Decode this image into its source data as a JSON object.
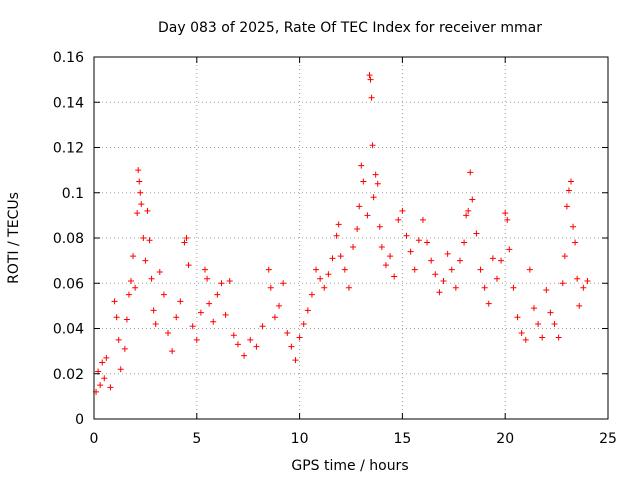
{
  "chart_data": {
    "type": "scatter",
    "title": "Day 083 of 2025, Rate Of TEC Index for receiver mmar",
    "xlabel": "GPS time / hours",
    "ylabel": "ROTI / TECUs",
    "xlim": [
      0,
      25
    ],
    "ylim": [
      0,
      0.16
    ],
    "xticks": [
      0,
      5,
      10,
      15,
      20,
      25
    ],
    "xtick_labels": [
      "0",
      "5",
      "10",
      "15",
      "20",
      "25"
    ],
    "yticks": [
      0,
      0.02,
      0.04,
      0.06,
      0.08,
      0.1,
      0.12,
      0.14,
      0.16
    ],
    "ytick_labels": [
      "0",
      "0.02",
      "0.04",
      "0.06",
      "0.08",
      "0.1",
      "0.12",
      "0.14",
      "0.16"
    ],
    "grid": true,
    "marker": "plus",
    "color": "#ff0000",
    "series": [
      {
        "values": [
          [
            0.1,
            0.012
          ],
          [
            0.2,
            0.021
          ],
          [
            0.3,
            0.015
          ],
          [
            0.4,
            0.025
          ],
          [
            0.5,
            0.018
          ],
          [
            0.6,
            0.027
          ],
          [
            0.8,
            0.014
          ],
          [
            1.0,
            0.052
          ],
          [
            1.1,
            0.045
          ],
          [
            1.2,
            0.035
          ],
          [
            1.3,
            0.022
          ],
          [
            1.5,
            0.031
          ],
          [
            1.6,
            0.044
          ],
          [
            1.7,
            0.055
          ],
          [
            1.8,
            0.061
          ],
          [
            1.9,
            0.072
          ],
          [
            2.0,
            0.058
          ],
          [
            2.1,
            0.091
          ],
          [
            2.15,
            0.11
          ],
          [
            2.2,
            0.105
          ],
          [
            2.25,
            0.1
          ],
          [
            2.3,
            0.095
          ],
          [
            2.4,
            0.08
          ],
          [
            2.5,
            0.07
          ],
          [
            2.6,
            0.092
          ],
          [
            2.7,
            0.079
          ],
          [
            2.8,
            0.062
          ],
          [
            2.9,
            0.048
          ],
          [
            3.0,
            0.042
          ],
          [
            3.2,
            0.065
          ],
          [
            3.4,
            0.055
          ],
          [
            3.6,
            0.038
          ],
          [
            3.8,
            0.03
          ],
          [
            4.0,
            0.045
          ],
          [
            4.2,
            0.052
          ],
          [
            4.4,
            0.078
          ],
          [
            4.5,
            0.08
          ],
          [
            4.6,
            0.068
          ],
          [
            4.8,
            0.041
          ],
          [
            5.0,
            0.035
          ],
          [
            5.2,
            0.047
          ],
          [
            5.4,
            0.066
          ],
          [
            5.5,
            0.062
          ],
          [
            5.6,
            0.051
          ],
          [
            5.8,
            0.043
          ],
          [
            6.0,
            0.055
          ],
          [
            6.2,
            0.06
          ],
          [
            6.4,
            0.046
          ],
          [
            6.6,
            0.061
          ],
          [
            6.8,
            0.037
          ],
          [
            7.0,
            0.033
          ],
          [
            7.3,
            0.028
          ],
          [
            7.6,
            0.035
          ],
          [
            7.9,
            0.032
          ],
          [
            8.2,
            0.041
          ],
          [
            8.5,
            0.066
          ],
          [
            8.6,
            0.058
          ],
          [
            8.8,
            0.045
          ],
          [
            9.0,
            0.05
          ],
          [
            9.2,
            0.06
          ],
          [
            9.4,
            0.038
          ],
          [
            9.6,
            0.032
          ],
          [
            9.8,
            0.026
          ],
          [
            10.0,
            0.036
          ],
          [
            10.2,
            0.042
          ],
          [
            10.4,
            0.048
          ],
          [
            10.6,
            0.055
          ],
          [
            10.8,
            0.066
          ],
          [
            11.0,
            0.062
          ],
          [
            11.2,
            0.058
          ],
          [
            11.4,
            0.064
          ],
          [
            11.6,
            0.071
          ],
          [
            11.8,
            0.081
          ],
          [
            11.9,
            0.086
          ],
          [
            12.0,
            0.072
          ],
          [
            12.2,
            0.066
          ],
          [
            12.4,
            0.058
          ],
          [
            12.6,
            0.076
          ],
          [
            12.8,
            0.084
          ],
          [
            12.9,
            0.094
          ],
          [
            13.0,
            0.112
          ],
          [
            13.1,
            0.105
          ],
          [
            13.3,
            0.09
          ],
          [
            13.4,
            0.152
          ],
          [
            13.45,
            0.15
          ],
          [
            13.5,
            0.142
          ],
          [
            13.55,
            0.121
          ],
          [
            13.6,
            0.098
          ],
          [
            13.7,
            0.108
          ],
          [
            13.8,
            0.104
          ],
          [
            13.9,
            0.085
          ],
          [
            14.0,
            0.076
          ],
          [
            14.2,
            0.068
          ],
          [
            14.4,
            0.072
          ],
          [
            14.6,
            0.063
          ],
          [
            14.8,
            0.088
          ],
          [
            15.0,
            0.092
          ],
          [
            15.2,
            0.081
          ],
          [
            15.4,
            0.074
          ],
          [
            15.6,
            0.066
          ],
          [
            15.8,
            0.079
          ],
          [
            16.0,
            0.088
          ],
          [
            16.2,
            0.078
          ],
          [
            16.4,
            0.07
          ],
          [
            16.6,
            0.064
          ],
          [
            16.8,
            0.056
          ],
          [
            17.0,
            0.061
          ],
          [
            17.2,
            0.073
          ],
          [
            17.4,
            0.066
          ],
          [
            17.6,
            0.058
          ],
          [
            17.8,
            0.07
          ],
          [
            18.0,
            0.078
          ],
          [
            18.1,
            0.09
          ],
          [
            18.2,
            0.092
          ],
          [
            18.3,
            0.109
          ],
          [
            18.4,
            0.097
          ],
          [
            18.6,
            0.082
          ],
          [
            18.8,
            0.066
          ],
          [
            19.0,
            0.058
          ],
          [
            19.2,
            0.051
          ],
          [
            19.4,
            0.071
          ],
          [
            19.6,
            0.062
          ],
          [
            19.8,
            0.07
          ],
          [
            20.0,
            0.091
          ],
          [
            20.1,
            0.088
          ],
          [
            20.2,
            0.075
          ],
          [
            20.4,
            0.058
          ],
          [
            20.6,
            0.045
          ],
          [
            20.8,
            0.038
          ],
          [
            21.0,
            0.035
          ],
          [
            21.2,
            0.066
          ],
          [
            21.4,
            0.049
          ],
          [
            21.6,
            0.042
          ],
          [
            21.8,
            0.036
          ],
          [
            22.0,
            0.057
          ],
          [
            22.2,
            0.047
          ],
          [
            22.4,
            0.042
          ],
          [
            22.6,
            0.036
          ],
          [
            22.8,
            0.06
          ],
          [
            22.9,
            0.072
          ],
          [
            23.0,
            0.094
          ],
          [
            23.1,
            0.101
          ],
          [
            23.2,
            0.105
          ],
          [
            23.3,
            0.085
          ],
          [
            23.4,
            0.078
          ],
          [
            23.5,
            0.062
          ],
          [
            23.6,
            0.05
          ],
          [
            23.8,
            0.058
          ],
          [
            24.0,
            0.061
          ]
        ]
      }
    ]
  }
}
